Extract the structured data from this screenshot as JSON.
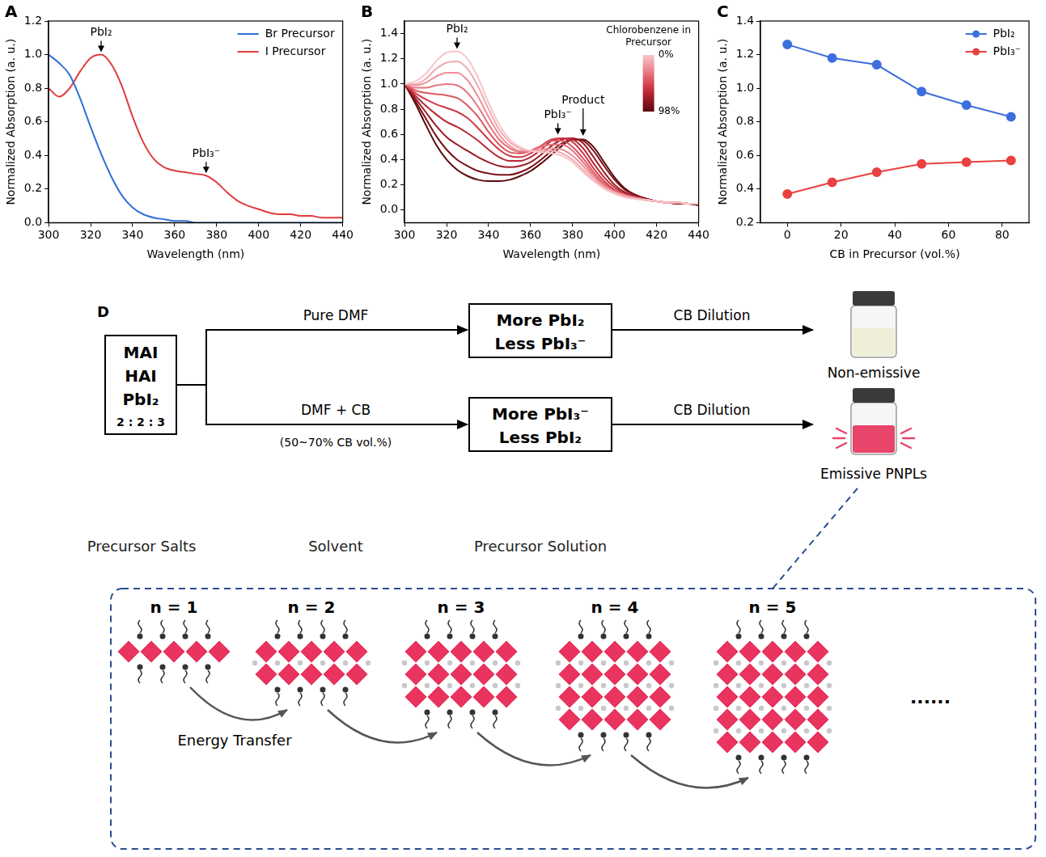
{
  "chart_data": [
    {
      "panel_label": "A",
      "type": "line",
      "x_label": "Wavelength (nm)",
      "y_label": "Normalized Absorption (a. u.)",
      "x": [
        300,
        305,
        310,
        315,
        320,
        325,
        330,
        335,
        340,
        345,
        350,
        355,
        360,
        365,
        370,
        375,
        380,
        385,
        390,
        395,
        400,
        405,
        410,
        415,
        420,
        425,
        430,
        435,
        440
      ],
      "series": [
        {
          "name": "Br Precursor",
          "color": "#2f6fd6",
          "values": [
            1.0,
            0.95,
            0.88,
            0.74,
            0.57,
            0.41,
            0.27,
            0.16,
            0.09,
            0.05,
            0.03,
            0.02,
            0.01,
            0.01,
            0.0,
            0.0,
            0.0,
            0.0,
            0.0,
            0.0,
            0.0,
            0.0,
            0.0,
            0.0,
            0.0,
            0.0,
            0.0,
            0.0,
            0.0
          ]
        },
        {
          "name": "I Precursor",
          "color": "#e23b3b",
          "values": [
            0.8,
            0.75,
            0.8,
            0.9,
            0.98,
            1.0,
            0.94,
            0.81,
            0.63,
            0.48,
            0.38,
            0.33,
            0.31,
            0.3,
            0.29,
            0.28,
            0.24,
            0.18,
            0.13,
            0.1,
            0.08,
            0.06,
            0.05,
            0.05,
            0.04,
            0.04,
            0.03,
            0.03,
            0.03
          ]
        }
      ],
      "xlim": [
        300,
        440
      ],
      "xticks": [
        300,
        320,
        340,
        360,
        380,
        400,
        420,
        440
      ],
      "ylim": [
        0,
        1.2
      ],
      "yticks": [
        {
          "value": 0,
          "label": "0.0"
        },
        0.2,
        0.4,
        0.6,
        0.8,
        {
          "value": 1,
          "label": "1.0"
        },
        1.2
      ],
      "grid": false,
      "legend": "upper right",
      "annotations": [
        {
          "text": "PbI₂",
          "x": 325,
          "y": 1.0
        },
        {
          "text": "PbI₃⁻",
          "x": 375,
          "y": 0.28
        }
      ]
    },
    {
      "panel_label": "B",
      "type": "line",
      "x_label": "Wavelength (nm)",
      "y_label": "Normalized Absorption (a. u.)",
      "x": [
        300,
        305,
        310,
        315,
        320,
        325,
        330,
        335,
        340,
        345,
        350,
        355,
        360,
        365,
        370,
        375,
        380,
        385,
        390,
        395,
        400,
        405,
        410,
        415,
        420,
        425,
        430,
        435,
        440
      ],
      "series": [
        {
          "color": "#f7c5c9",
          "values": [
            1.0,
            1.02,
            1.08,
            1.18,
            1.25,
            1.26,
            1.2,
            1.05,
            0.85,
            0.68,
            0.56,
            0.5,
            0.47,
            0.46,
            0.45,
            0.43,
            0.38,
            0.3,
            0.23,
            0.17,
            0.13,
            0.1,
            0.09,
            0.08,
            0.07,
            0.06,
            0.06,
            0.05,
            0.05
          ]
        },
        {
          "color": "#f2aab0",
          "values": [
            1.0,
            1.0,
            1.04,
            1.12,
            1.17,
            1.18,
            1.12,
            0.98,
            0.8,
            0.64,
            0.54,
            0.49,
            0.47,
            0.47,
            0.47,
            0.45,
            0.4,
            0.32,
            0.24,
            0.18,
            0.14,
            0.11,
            0.09,
            0.08,
            0.07,
            0.06,
            0.06,
            0.05,
            0.05
          ]
        },
        {
          "color": "#ec8f97",
          "values": [
            1.0,
            0.99,
            1.01,
            1.06,
            1.09,
            1.09,
            1.03,
            0.9,
            0.74,
            0.6,
            0.51,
            0.47,
            0.47,
            0.48,
            0.49,
            0.48,
            0.43,
            0.35,
            0.26,
            0.19,
            0.14,
            0.11,
            0.09,
            0.08,
            0.07,
            0.06,
            0.06,
            0.05,
            0.05
          ]
        },
        {
          "color": "#e5737d",
          "values": [
            1.0,
            0.97,
            0.97,
            0.99,
            1.0,
            0.99,
            0.93,
            0.82,
            0.68,
            0.56,
            0.49,
            0.46,
            0.47,
            0.5,
            0.52,
            0.52,
            0.47,
            0.38,
            0.28,
            0.2,
            0.15,
            0.12,
            0.1,
            0.08,
            0.07,
            0.06,
            0.06,
            0.05,
            0.05
          ]
        },
        {
          "color": "#dd5663",
          "values": [
            1.0,
            0.95,
            0.93,
            0.92,
            0.91,
            0.89,
            0.83,
            0.74,
            0.62,
            0.52,
            0.46,
            0.45,
            0.47,
            0.51,
            0.55,
            0.55,
            0.5,
            0.41,
            0.3,
            0.21,
            0.15,
            0.12,
            0.1,
            0.08,
            0.07,
            0.06,
            0.06,
            0.05,
            0.05
          ]
        },
        {
          "color": "#cf3a48",
          "values": [
            1.0,
            0.93,
            0.88,
            0.84,
            0.81,
            0.78,
            0.73,
            0.65,
            0.56,
            0.48,
            0.43,
            0.42,
            0.45,
            0.51,
            0.56,
            0.57,
            0.54,
            0.45,
            0.33,
            0.23,
            0.16,
            0.12,
            0.1,
            0.08,
            0.07,
            0.06,
            0.06,
            0.05,
            0.05
          ]
        },
        {
          "color": "#b82835",
          "values": [
            1.0,
            0.91,
            0.83,
            0.76,
            0.7,
            0.66,
            0.61,
            0.55,
            0.48,
            0.42,
            0.39,
            0.39,
            0.42,
            0.48,
            0.55,
            0.57,
            0.56,
            0.49,
            0.37,
            0.26,
            0.18,
            0.13,
            0.1,
            0.08,
            0.07,
            0.06,
            0.06,
            0.05,
            0.05
          ]
        },
        {
          "color": "#9a1b25",
          "values": [
            1.0,
            0.89,
            0.78,
            0.67,
            0.58,
            0.52,
            0.47,
            0.42,
            0.38,
            0.35,
            0.34,
            0.35,
            0.38,
            0.44,
            0.51,
            0.56,
            0.57,
            0.53,
            0.42,
            0.3,
            0.2,
            0.14,
            0.11,
            0.09,
            0.07,
            0.06,
            0.06,
            0.05,
            0.05
          ]
        },
        {
          "color": "#7a1018",
          "values": [
            1.0,
            0.87,
            0.73,
            0.59,
            0.48,
            0.4,
            0.35,
            0.31,
            0.29,
            0.28,
            0.28,
            0.3,
            0.34,
            0.4,
            0.47,
            0.53,
            0.56,
            0.55,
            0.47,
            0.35,
            0.24,
            0.16,
            0.12,
            0.09,
            0.07,
            0.06,
            0.05,
            0.05,
            0.04
          ]
        },
        {
          "color": "#5c0a0c",
          "values": [
            1.0,
            0.85,
            0.68,
            0.52,
            0.4,
            0.32,
            0.27,
            0.24,
            0.23,
            0.23,
            0.24,
            0.27,
            0.31,
            0.37,
            0.44,
            0.51,
            0.56,
            0.56,
            0.5,
            0.38,
            0.26,
            0.17,
            0.12,
            0.09,
            0.07,
            0.06,
            0.05,
            0.05,
            0.04
          ]
        }
      ],
      "xlim": [
        300,
        440
      ],
      "xticks": [
        300,
        320,
        340,
        360,
        380,
        400,
        420,
        440
      ],
      "ylim": [
        -0.1,
        1.5
      ],
      "yticks": [
        {
          "value": 0,
          "label": "0.0"
        },
        0.2,
        0.4,
        0.6,
        0.8,
        {
          "value": 1,
          "label": "1.0"
        },
        1.2,
        1.4
      ],
      "grid": false,
      "annotations": [
        {
          "text": "PbI₂",
          "x": 325,
          "y": 1.26
        },
        {
          "text": "PbI₃⁻",
          "x": 373,
          "y": 0.58
        },
        {
          "text": "Product",
          "x": 385,
          "y": 0.57
        }
      ],
      "colorbar": {
        "label": "Chlorobenzene in Precursor",
        "range": [
          0,
          98
        ],
        "ticks": [
          {
            "value": 0,
            "label": "0%"
          },
          {
            "value": 98,
            "label": "98%"
          }
        ]
      }
    },
    {
      "panel_label": "C",
      "type": "line",
      "marker": "circle",
      "x_label": "CB in Precursor (vol.%)",
      "y_label": "Normalized Absorption (a. u.)",
      "x": [
        0,
        16.7,
        33.3,
        50,
        66.7,
        83.3
      ],
      "series": [
        {
          "name": "PbI₂",
          "color": "#3d6fdc",
          "values": [
            1.26,
            1.18,
            1.14,
            0.98,
            0.9,
            0.83
          ]
        },
        {
          "name": "PbI₃⁻",
          "color": "#e8413f",
          "values": [
            0.37,
            0.44,
            0.5,
            0.55,
            0.56,
            0.57
          ]
        }
      ],
      "xlim": [
        -10,
        90
      ],
      "xticks": [
        0,
        20,
        40,
        60,
        80
      ],
      "ylim": [
        0.2,
        1.4
      ],
      "yticks": [
        0.2,
        0.4,
        0.6,
        0.8,
        {
          "value": 1,
          "label": "1.0"
        },
        1.2,
        1.4
      ],
      "grid": false,
      "legend": "upper right"
    }
  ],
  "diagram": {
    "panel_label": "D",
    "salts": {
      "lines": [
        "MAI",
        "HAI",
        "PbI₂"
      ],
      "ratio": "2 : 2 : 3"
    },
    "branches": [
      {
        "solvent": "Pure DMF",
        "solution": [
          "More PbI₂",
          "Less PbI₃⁻"
        ],
        "step": "CB Dilution",
        "result": "Non-emissive"
      },
      {
        "solvent": "DMF + CB",
        "note": "(50~70% CB vol.%)",
        "solution": [
          "More PbI₃⁻",
          "Less PbI₂"
        ],
        "step": "CB Dilution",
        "result": "Emissive PNPLs"
      }
    ],
    "columns": [
      "Precursor Salts",
      "Solvent",
      "Precursor Solution"
    ],
    "structures": {
      "labels": [
        "n = 1",
        "n = 2",
        "n = 3",
        "n = 4",
        "n = 5"
      ],
      "layers": [
        1,
        2,
        3,
        4,
        5
      ],
      "more": "......",
      "transfer": "Energy Transfer"
    }
  }
}
